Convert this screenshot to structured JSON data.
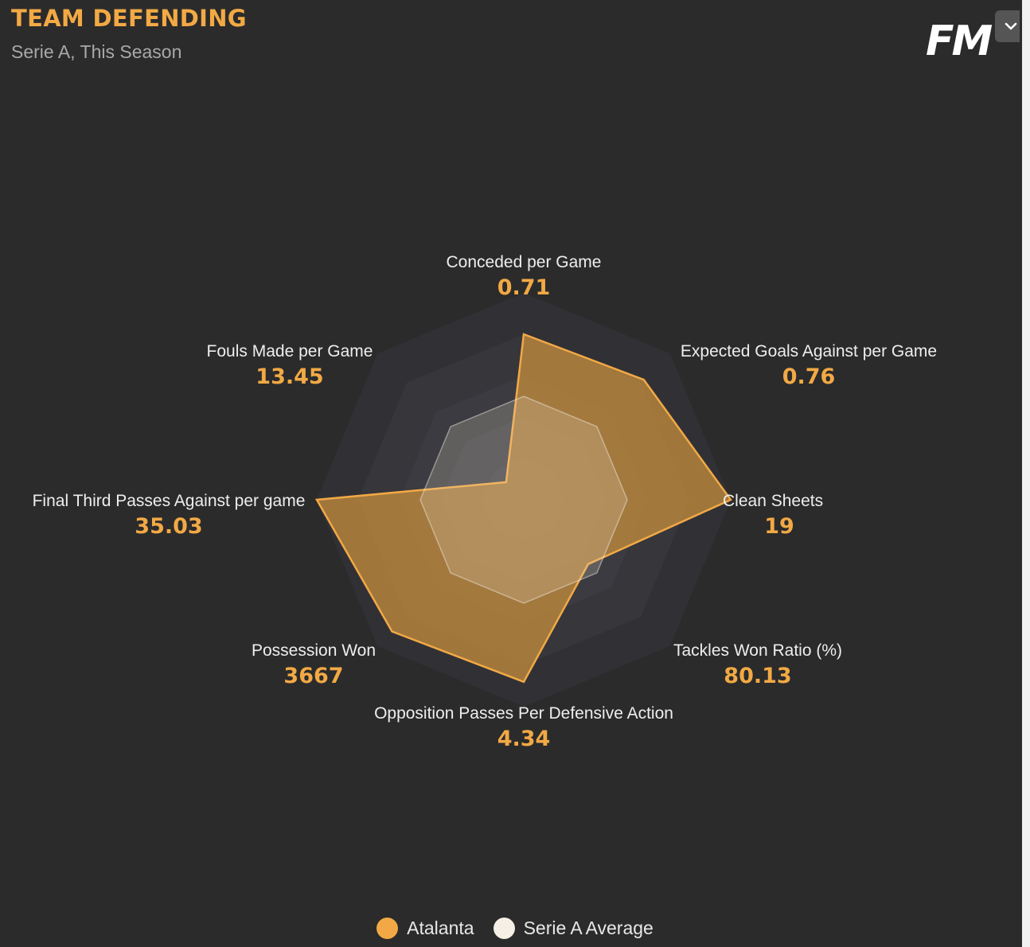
{
  "header": {
    "title": "TEAM DEFENDING",
    "subtitle": "Serie A, This Season",
    "logo_text": "FM",
    "menu_icon": "chevron-down-icon"
  },
  "colors": {
    "accent": "#f2a945",
    "team_fill": "#c08a3e",
    "average_fill": "#d9c9a8",
    "background": "#2b2b2b",
    "ring_outer": "#323236",
    "ring_inner": "#42424a"
  },
  "chart_data": {
    "type": "radar",
    "title": "TEAM DEFENDING",
    "subtitle": "Serie A, This Season",
    "axes": [
      {
        "label": "Conceded per Game",
        "value": "0.71"
      },
      {
        "label": "Expected Goals Against per Game",
        "value": "0.76"
      },
      {
        "label": "Clean Sheets",
        "value": "19"
      },
      {
        "label": "Tackles Won Ratio (%)",
        "value": "80.13"
      },
      {
        "label": "Opposition Passes Per Defensive Action",
        "value": "4.34"
      },
      {
        "label": "Possession Won",
        "value": "3667"
      },
      {
        "label": "Final Third Passes Against per game",
        "value": "35.03"
      },
      {
        "label": "Fouls Made per Game",
        "value": "13.45"
      }
    ],
    "series": [
      {
        "name": "Atalanta",
        "color": "#f2a945",
        "values": [
          0.8,
          0.82,
          1.0,
          0.44,
          0.88,
          0.9,
          1.0,
          0.12
        ]
      },
      {
        "name": "Serie A Average",
        "color": "#f5efe6",
        "values": [
          0.5,
          0.5,
          0.5,
          0.5,
          0.5,
          0.5,
          0.5,
          0.5
        ]
      }
    ],
    "rings": 5,
    "legend_position": "bottom"
  }
}
